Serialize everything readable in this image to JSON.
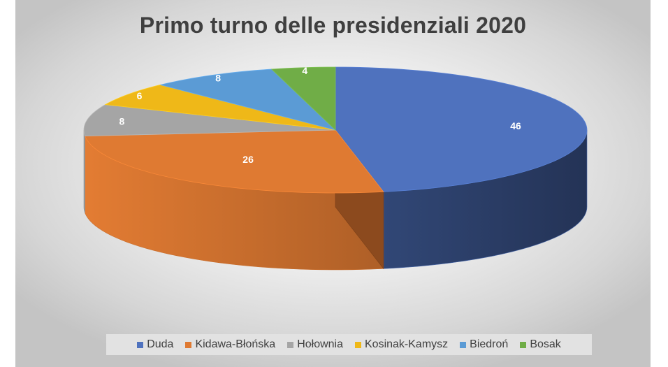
{
  "chart_data": {
    "type": "pie",
    "style": "3d",
    "title": "Primo turno delle presidenziali 2020",
    "categories": [
      "Duda",
      "Kidawa-Błońska",
      "Hołownia",
      "Kosinak-Kamysz",
      "Biedroń",
      "Bosak"
    ],
    "values": [
      46,
      26,
      8,
      6,
      8,
      4
    ],
    "colors": [
      "#4f72be",
      "#df7a32",
      "#a5a5a5",
      "#efb818",
      "#5b9bd5",
      "#70ad47"
    ],
    "data_labels": [
      "46",
      "26",
      "8",
      "6",
      "8",
      "4"
    ],
    "legend_position": "bottom"
  }
}
